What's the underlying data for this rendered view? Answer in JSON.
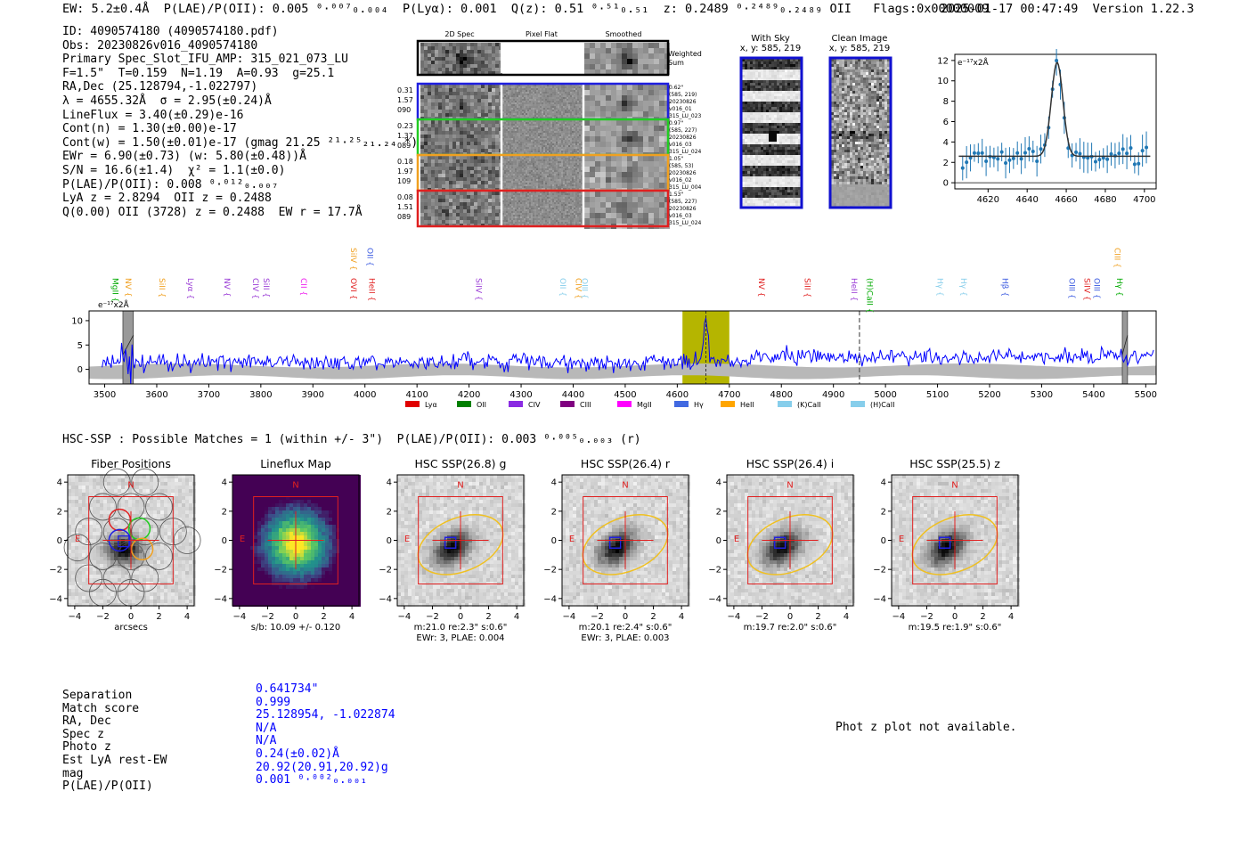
{
  "header": {
    "summary": "EW: 5.2±0.4Å  P(LAE)/P(OII): 0.005 ⁰·⁰⁰⁷₀.₀₀₄  P(Lyα): 0.001  Q(z): 0.51 ⁰·⁵¹₀.₅₁  z: 0.2489 ⁰·²⁴⁸⁹₀.₂₄₈₉ OII   Flags:0x00000009",
    "timestamp": "2025-01-17 00:47:49  Version 1.22.3"
  },
  "info_lines": [
    "ID: 4090574180 (4090574180.pdf)",
    "Obs: 20230826v016_4090574180",
    "Primary Spec_Slot_IFU_AMP: 315_021_073_LU",
    "F=1.5\"  T=0.159  N=1.19  A=0.93  g=25.1",
    "RA,Dec (25.128794,-1.022797)",
    "λ = 4655.32Å  σ = 2.95(±0.24)Å",
    "LineFlux = 3.40(±0.29)e-16",
    "Cont(n) = 1.30(±0.00)e-17",
    "Cont(w) = 1.50(±0.01)e-17 (gmag 21.25 ²¹·²⁵₂₁.₂₄ *)",
    "EWr = 6.90(±0.73) (w: 5.80(±0.48))Å",
    "S/N = 16.6(±1.4)  χ² = 1.1(±0.0)",
    "P(LAE)/P(OII): 0.008 ⁰·⁰¹²₀.₀₀₇",
    "LyA z = 2.8294  OII z = 0.2488",
    "Q(0.00) OII (3728) z = 0.2488  EW r = 17.7Å"
  ],
  "cutouts": {
    "headers": [
      "2D Spec",
      "Pixel Flat",
      "Smoothed"
    ],
    "weighted_label": "Weighted Sum",
    "rows": [
      {
        "left": [
          "0.31",
          "1.57",
          "090"
        ],
        "right": [
          "0.62\"",
          "(585, 219)",
          "20230826",
          "v016_01",
          "315_LU_023"
        ],
        "color": "#1f1fe0"
      },
      {
        "left": [
          "0.23",
          "1.37",
          "089"
        ],
        "right": [
          "0.97\"",
          "(585, 227)",
          "20230826",
          "v016_03",
          "315_LU_024"
        ],
        "color": "#22cc22"
      },
      {
        "left": [
          "0.18",
          "1.97",
          "109"
        ],
        "right": [
          "1.05\"",
          "(585, 53)",
          "20230826",
          "v016_02",
          "315_LU_004"
        ],
        "color": "#f0a020"
      },
      {
        "left": [
          "0.08",
          "1.51",
          "089"
        ],
        "right": [
          "1.53\"",
          "(585, 227)",
          "20230826",
          "v016_03",
          "315_LU_024"
        ],
        "color": "#e02020"
      }
    ],
    "with_sky": {
      "title": "With Sky",
      "coords": "x, y: 585, 219"
    },
    "clean": {
      "title": "Clean Image",
      "coords": "x, y: 585, 219"
    }
  },
  "line_fit": {
    "unit_label": "e⁻¹⁷x2Å",
    "type": "line",
    "x_ticks": [
      4620,
      4640,
      4660,
      4680,
      4700
    ],
    "y_ticks": [
      0,
      2,
      4,
      6,
      8,
      10,
      12
    ],
    "xlim": [
      4603,
      4706
    ],
    "ylim": [
      -0.6,
      12.6
    ],
    "center": 4655.32,
    "sigma": 2.95,
    "continuum": 2.6,
    "peak": 11.8
  },
  "chart_data": {
    "type": "line",
    "title": "",
    "unit_label": "e⁻¹⁷x2Å",
    "xlim": [
      3470,
      5520
    ],
    "ylim": [
      -3,
      12
    ],
    "x_ticks": [
      3500,
      3600,
      3700,
      3800,
      3900,
      4000,
      4100,
      4200,
      4300,
      4400,
      4500,
      4600,
      4700,
      4800,
      4900,
      5000,
      5100,
      5200,
      5300,
      5400,
      5500
    ],
    "y_ticks": [
      0,
      5,
      10
    ],
    "highlight_range": [
      4610,
      4700
    ],
    "emission_wavelength": 4655,
    "dashed_line": 4950,
    "masked_regions": [
      [
        3535,
        3555
      ],
      [
        5455,
        5465
      ]
    ],
    "series": [
      {
        "name": "spectrum",
        "color": "#0000ff",
        "baseline": 1.5,
        "noise": 1.4
      }
    ],
    "line_labels": [
      {
        "name": "MgII",
        "x": 3510,
        "color": "#00aa00",
        "row": 0
      },
      {
        "name": "NV",
        "x": 3535,
        "color": "#f0a020",
        "row": 0
      },
      {
        "name": "SiII",
        "x": 3600,
        "color": "#f0a020",
        "row": 0
      },
      {
        "name": "Lyα",
        "x": 3655,
        "color": "#9a3cd6",
        "row": 0
      },
      {
        "name": "NV",
        "x": 3725,
        "color": "#9a3cd6",
        "row": 0
      },
      {
        "name": "CIV",
        "x": 3780,
        "color": "#9a3cd6",
        "row": 0
      },
      {
        "name": "SiII",
        "x": 3800,
        "color": "#9a3cd6",
        "row": 0
      },
      {
        "name": "CII",
        "x": 3872,
        "color": "#ee22ee",
        "row": 0
      },
      {
        "name": "SiIV",
        "x": 3968,
        "color": "#f0a020",
        "row": 1
      },
      {
        "name": "OVI",
        "x": 3968,
        "color": "#e02020",
        "row": 0
      },
      {
        "name": "OII",
        "x": 4000,
        "color": "#3a5ae0",
        "row": 1
      },
      {
        "name": "HeII",
        "x": 4003,
        "color": "#e02020",
        "row": 0
      },
      {
        "name": "SiIV",
        "x": 4208,
        "color": "#9a3cd6",
        "row": 0
      },
      {
        "name": "OII",
        "x": 4370,
        "color": "#87ceeb",
        "row": 0
      },
      {
        "name": "CIV",
        "x": 4400,
        "color": "#f0a020",
        "row": 0
      },
      {
        "name": "OIII",
        "x": 4412,
        "color": "#87ceeb",
        "row": 0
      },
      {
        "name": "NV",
        "x": 4752,
        "color": "#e02020",
        "row": 0
      },
      {
        "name": "SiII",
        "x": 4840,
        "color": "#e02020",
        "row": 0
      },
      {
        "name": "HeII",
        "x": 4930,
        "color": "#9a3cd6",
        "row": 0
      },
      {
        "name": "(H)CaII",
        "x": 4960,
        "color": "#00aa00",
        "row": 0
      },
      {
        "name": "Hγ",
        "x": 5095,
        "color": "#87ceeb",
        "row": 0
      },
      {
        "name": "Hγ",
        "x": 5140,
        "color": "#87ceeb",
        "row": 0
      },
      {
        "name": "Hβ",
        "x": 5220,
        "color": "#3a5ae0",
        "row": 0
      },
      {
        "name": "OIII",
        "x": 5348,
        "color": "#3a5ae0",
        "row": 0
      },
      {
        "name": "SiIV",
        "x": 5377,
        "color": "#e02020",
        "row": 0
      },
      {
        "name": "OIII",
        "x": 5396,
        "color": "#3a5ae0",
        "row": 0
      },
      {
        "name": "CIII",
        "x": 5435,
        "color": "#f0a020",
        "row": 1
      },
      {
        "name": "Hγ",
        "x": 5440,
        "color": "#00aa00",
        "row": 0
      }
    ],
    "legend": [
      {
        "label": "Lyα",
        "color": "#e00000"
      },
      {
        "label": "OII",
        "color": "#008000"
      },
      {
        "label": "CIV",
        "color": "#8a2be2"
      },
      {
        "label": "CIII",
        "color": "#800080"
      },
      {
        "label": "MgII",
        "color": "#ff00ff"
      },
      {
        "label": "Hγ",
        "color": "#4169e1"
      },
      {
        "label": "HeII",
        "color": "#ffa500"
      },
      {
        "label": "(K)CaII",
        "color": "#87ceeb"
      },
      {
        "label": "(H)CaII",
        "color": "#87ceeb"
      }
    ]
  },
  "hsc": {
    "title": "HSC-SSP : Possible Matches = 1 (within +/- 3\")  P(LAE)/P(OII): 0.003 ⁰·⁰⁰⁵₀.₀₀₃ (r)",
    "axis_ticks": [
      -4,
      -2,
      0,
      2,
      4
    ],
    "panels": [
      {
        "title": "Fiber Positions",
        "caption1": "arcsecs",
        "caption2": "",
        "kind": "fiber"
      },
      {
        "title": "Lineflux Map",
        "caption1": "s/b: 10.09 +/- 0.120",
        "caption2": "",
        "kind": "flux"
      },
      {
        "title": "HSC SSP(26.8) g",
        "caption1": "m:21.0  re:2.3\"  s:0.6\"",
        "caption2": "EWr: 3, PLAE: 0.004",
        "kind": "img"
      },
      {
        "title": "HSC SSP(26.4) r",
        "caption1": "m:20.1  re:2.4\"  s:0.6\"",
        "caption2": "EWr: 3, PLAE: 0.003",
        "kind": "img"
      },
      {
        "title": "HSC SSP(26.4) i",
        "caption1": "m:19.7  re:2.0\"  s:0.6\"",
        "caption2": "",
        "kind": "img"
      },
      {
        "title": "HSC SSP(25.5) z",
        "caption1": "m:19.5  re:1.9\"  s:0.6\"",
        "caption2": "",
        "kind": "img"
      }
    ],
    "north_label": "N",
    "east_label": "E"
  },
  "match_summary": {
    "labels": [
      "Separation",
      "Match score",
      "RA, Dec",
      "Spec z",
      "Photo z",
      "Est LyA rest-EW",
      "mag",
      "P(LAE)/P(OII)"
    ],
    "values": [
      "0.641734\"",
      "0.999",
      "25.128954, -1.022874",
      "N/A",
      "N/A",
      "0.24(±0.02)Å",
      "20.92(20.91,20.92)g",
      "0.001 ⁰·⁰⁰²₀.₀₀₁"
    ]
  },
  "photz_note": "Phot z plot not available."
}
